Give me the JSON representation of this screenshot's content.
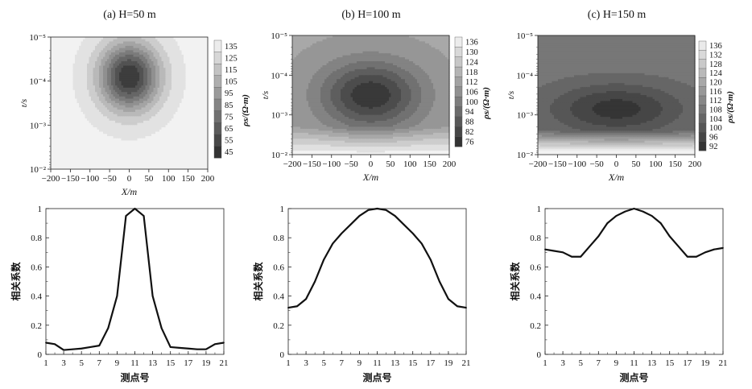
{
  "chart_data": [
    {
      "type": "heatmap",
      "title": "(a) H=50 m",
      "xlabel": "X/m",
      "ylabel": "t/s",
      "colorbar_label": "ρs/(Ω·m)",
      "x_ticks": [
        "−200",
        "−150",
        "−100",
        "−50",
        "0",
        "50",
        "100",
        "150",
        "200"
      ],
      "y_ticks": [
        "10⁻⁵",
        "10⁻⁴",
        "10⁻³",
        "10⁻²"
      ],
      "xlim": [
        -200,
        200
      ],
      "ylim_log10": [
        -5,
        -2
      ],
      "colorbar_ticks": [
        "135",
        "125",
        "115",
        "105",
        "95",
        "85",
        "75",
        "65",
        "55",
        "45"
      ],
      "colorbar_range": [
        42,
        138
      ],
      "background": 138,
      "anomaly": {
        "center_x": 0,
        "center_log_t": -4.1,
        "min_value": 45,
        "sigma_x": 55,
        "sigma_logt": 0.55
      }
    },
    {
      "type": "heatmap",
      "title": "(b) H=100 m",
      "xlabel": "X/m",
      "ylabel": "t/s",
      "colorbar_label": "ρs/(Ω·m)",
      "x_ticks": [
        "−200",
        "−150",
        "−100",
        "−50",
        "0",
        "50",
        "100",
        "150",
        "200"
      ],
      "y_ticks": [
        "10⁻⁵",
        "10⁻⁴",
        "10⁻³",
        "10⁻²"
      ],
      "xlim": [
        -200,
        200
      ],
      "ylim_log10": [
        -5,
        -2
      ],
      "colorbar_ticks": [
        "136",
        "130",
        "124",
        "118",
        "112",
        "106",
        "100",
        "94",
        "88",
        "82",
        "76"
      ],
      "colorbar_range": [
        74,
        138
      ],
      "background": 112,
      "anomaly": {
        "center_x": 0,
        "center_log_t": -3.5,
        "min_value": 76,
        "sigma_x": 90,
        "sigma_logt": 0.6
      }
    },
    {
      "type": "heatmap",
      "title": "(c) H=150 m",
      "xlabel": "X/m",
      "ylabel": "t/s",
      "colorbar_label": "ρs/(Ω·m)",
      "x_ticks": [
        "−200",
        "−150",
        "−100",
        "−50",
        "0",
        "50",
        "100",
        "150",
        "200"
      ],
      "y_ticks": [
        "10⁻⁵",
        "10⁻⁴",
        "10⁻³",
        "10⁻²"
      ],
      "xlim": [
        -200,
        200
      ],
      "ylim_log10": [
        -5,
        -2
      ],
      "colorbar_ticks": [
        "136",
        "132",
        "128",
        "124",
        "120",
        "116",
        "112",
        "108",
        "104",
        "100",
        "96",
        "92"
      ],
      "colorbar_range": [
        90,
        138
      ],
      "background": 108,
      "anomaly": {
        "center_x": 0,
        "center_log_t": -3.15,
        "min_value": 92,
        "sigma_x": 120,
        "sigma_logt": 0.45
      }
    },
    {
      "type": "line",
      "xlabel": "测点号",
      "ylabel": "相关系数",
      "x": [
        1,
        2,
        3,
        4,
        5,
        6,
        7,
        8,
        9,
        10,
        11,
        12,
        13,
        14,
        15,
        16,
        17,
        18,
        19,
        20,
        21
      ],
      "x_ticks": [
        "1",
        "3",
        "5",
        "7",
        "9",
        "11",
        "13",
        "15",
        "17",
        "19",
        "21"
      ],
      "y_ticks": [
        "0",
        "0.2",
        "0.4",
        "0.6",
        "0.8",
        "1"
      ],
      "ylim": [
        0,
        1
      ],
      "series": [
        {
          "values": [
            0.08,
            0.07,
            0.03,
            0.035,
            0.04,
            0.05,
            0.06,
            0.18,
            0.4,
            0.95,
            1.0,
            0.95,
            0.4,
            0.18,
            0.05,
            0.045,
            0.04,
            0.035,
            0.035,
            0.07,
            0.08
          ]
        }
      ]
    },
    {
      "type": "line",
      "xlabel": "测点号",
      "ylabel": "相关系数",
      "x": [
        1,
        2,
        3,
        4,
        5,
        6,
        7,
        8,
        9,
        10,
        11,
        12,
        13,
        14,
        15,
        16,
        17,
        18,
        19,
        20,
        21
      ],
      "x_ticks": [
        "1",
        "3",
        "5",
        "7",
        "9",
        "11",
        "13",
        "15",
        "17",
        "19",
        "21"
      ],
      "y_ticks": [
        "0",
        "0.2",
        "0.4",
        "0.6",
        "0.8",
        "1"
      ],
      "ylim": [
        0,
        1
      ],
      "series": [
        {
          "values": [
            0.32,
            0.33,
            0.38,
            0.5,
            0.65,
            0.76,
            0.83,
            0.89,
            0.95,
            0.99,
            1.0,
            0.99,
            0.95,
            0.89,
            0.83,
            0.76,
            0.65,
            0.5,
            0.38,
            0.33,
            0.32
          ]
        }
      ]
    },
    {
      "type": "line",
      "xlabel": "测点号",
      "ylabel": "相关系数",
      "x": [
        1,
        2,
        3,
        4,
        5,
        6,
        7,
        8,
        9,
        10,
        11,
        12,
        13,
        14,
        15,
        16,
        17,
        18,
        19,
        20,
        21
      ],
      "x_ticks": [
        "1",
        "3",
        "5",
        "7",
        "9",
        "11",
        "13",
        "15",
        "17",
        "19",
        "21"
      ],
      "y_ticks": [
        "0",
        "0.2",
        "0.4",
        "0.6",
        "0.8",
        "1"
      ],
      "ylim": [
        0,
        1
      ],
      "series": [
        {
          "values": [
            0.72,
            0.71,
            0.7,
            0.67,
            0.67,
            0.74,
            0.81,
            0.9,
            0.95,
            0.98,
            1.0,
            0.98,
            0.95,
            0.9,
            0.81,
            0.74,
            0.67,
            0.67,
            0.7,
            0.72,
            0.73
          ]
        }
      ]
    }
  ]
}
